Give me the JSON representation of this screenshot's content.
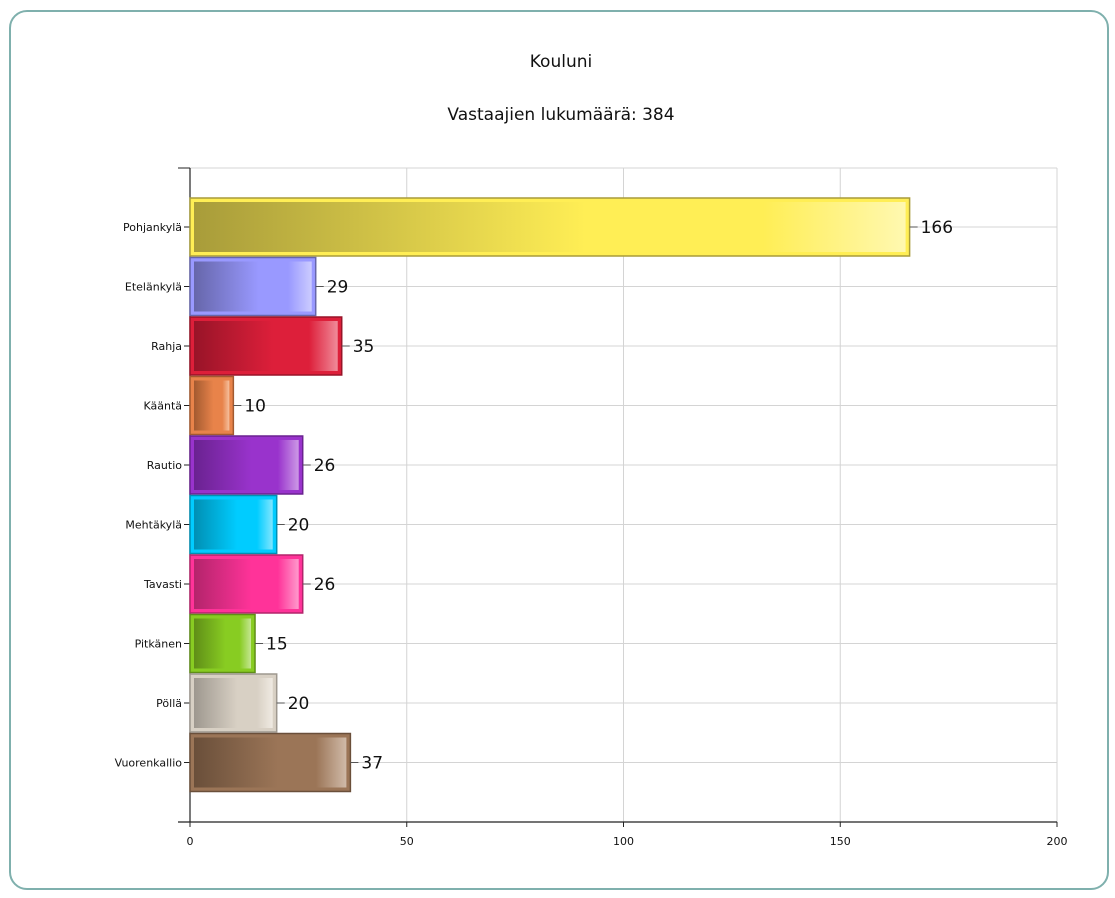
{
  "chart_data": {
    "type": "bar",
    "orientation": "horizontal",
    "title": "Kouluni",
    "subtitle": "Vastaajien lukumäärä: 384",
    "xlabel": "",
    "ylabel": "",
    "xlim": [
      0,
      200
    ],
    "x_ticks": [
      0,
      50,
      100,
      150,
      200
    ],
    "grid": true,
    "legend": "none",
    "categories": [
      "Pohjankylä",
      "Etelänkylä",
      "Rahja",
      "Kääntä",
      "Rautio",
      "Mehtäkylä",
      "Tavasti",
      "Pitkänen",
      "Pöllä",
      "Vuorenkallio"
    ],
    "values": [
      166,
      29,
      35,
      10,
      26,
      20,
      26,
      15,
      20,
      37
    ],
    "colors": [
      "#ffee55",
      "#9999ff",
      "#dd1f3a",
      "#e8834a",
      "#9933cc",
      "#00ccff",
      "#ff3399",
      "#88cc22",
      "#d8d0c4",
      "#9b7557"
    ],
    "dark_colors": [
      "#a89c3a",
      "#6666aa",
      "#981428",
      "#a35a30",
      "#6a2290",
      "#008fb3",
      "#b3246b",
      "#5f8e17",
      "#9e988f",
      "#6a4f3a"
    ],
    "light_colors": [
      "#fff8b0",
      "#ccccff",
      "#f08a99",
      "#f5c09e",
      "#cc99e6",
      "#80e6ff",
      "#ff99cc",
      "#c4e691",
      "#efeae2",
      "#d0baa8"
    ]
  }
}
